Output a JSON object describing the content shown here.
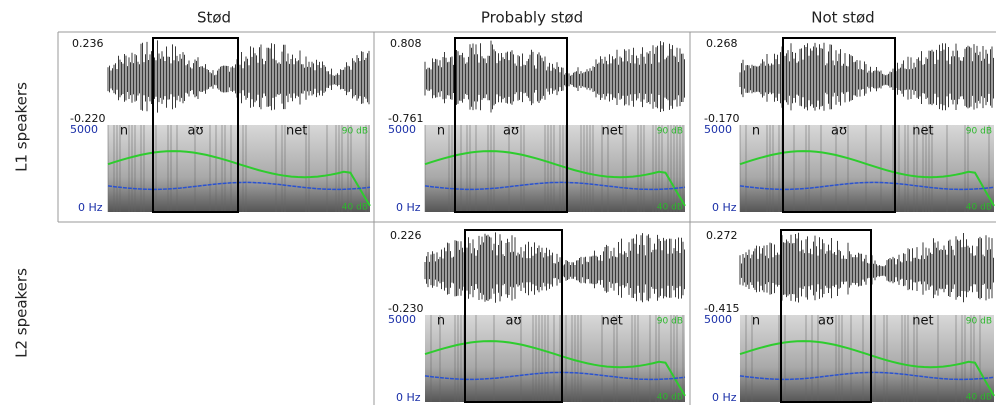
{
  "columns": [
    "Stød",
    "Probably stød",
    "Not stød"
  ],
  "rows": [
    "L1 speakers",
    "L2 speakers"
  ],
  "panels": [
    {
      "amp_top": "0.236",
      "amp_bottom": "-0.220",
      "freq_top": "5000",
      "freq_bottom": "0 Hz",
      "segments": [
        "n",
        "aʊ",
        "net"
      ],
      "db_top": "90 dB",
      "db_bottom": "40 dB"
    },
    {
      "amp_top": "0.808",
      "amp_bottom": "-0.761",
      "freq_top": "5000",
      "freq_bottom": "0 Hz",
      "segments": [
        "n",
        "aʊ",
        "net"
      ],
      "db_top": "90 dB",
      "db_bottom": "40 dB"
    },
    {
      "amp_top": "0.268",
      "amp_bottom": "-0.170",
      "freq_top": "5000",
      "freq_bottom": "0 Hz",
      "segments": [
        "n",
        "aʊ",
        "net"
      ],
      "db_top": "90 dB",
      "db_bottom": "40 dB"
    },
    {
      "amp_top": "0.226",
      "amp_bottom": "-0.230",
      "freq_top": "5000",
      "freq_bottom": "0 Hz",
      "segments": [
        "n",
        "aʊ",
        "net"
      ],
      "db_top": "90 dB",
      "db_bottom": "40 dB"
    },
    {
      "amp_top": "0.272",
      "amp_bottom": "-0.415",
      "freq_top": "5000",
      "freq_bottom": "0 Hz",
      "segments": [
        "n",
        "aʊ",
        "net"
      ],
      "db_top": "90 dB",
      "db_bottom": "40 dB"
    }
  ]
}
